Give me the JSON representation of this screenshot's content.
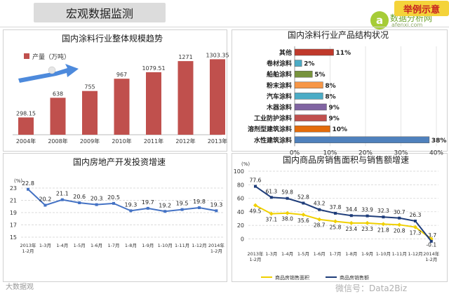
{
  "page": {
    "title": "宏观数据监测",
    "brand_name": "数据分析网",
    "brand_url": "afenxi.com",
    "badge": "举例示意",
    "footer_watermark": "大数据观",
    "wechat_watermark": "微信号：Data2Biz"
  },
  "chart_data": [
    {
      "type": "bar",
      "title": "国内涂料行业整体规模趋势",
      "legend": "产量（万吨）",
      "categories": [
        "2004年",
        "2008年",
        "2009年",
        "2010年",
        "2011年",
        "2012年",
        "2013年"
      ],
      "values": [
        298.15,
        638,
        755,
        967,
        1079.51,
        1271,
        1303.35
      ],
      "value_labels": [
        "298.15",
        "638",
        "755",
        "967",
        "1079.51",
        "1271",
        "1303.35"
      ],
      "color": "#c0504d",
      "ylim": [
        0,
        1400
      ]
    },
    {
      "type": "bar",
      "orientation": "horizontal",
      "title": "国内涂料行业产品结构状况",
      "categories": [
        "其他",
        "卷材涂料",
        "船舶涂料",
        "粉末涂料",
        "汽车涂料",
        "木器涂料",
        "工业防护涂料",
        "溶剂型建筑涂料",
        "水性建筑涂料"
      ],
      "values": [
        11,
        2,
        5,
        8,
        8,
        9,
        9,
        10,
        38
      ],
      "value_labels": [
        "11%",
        "2%",
        "5%",
        "8%",
        "8%",
        "9%",
        "9%",
        "10%",
        "38%"
      ],
      "colors": [
        "#c0392b",
        "#4bacc6",
        "#77933c",
        "#f79646",
        "#4bacc6",
        "#8064a2",
        "#c0504d",
        "#e46c0a",
        "#4f81bd"
      ],
      "xticks": [
        "0%",
        "10%",
        "20%",
        "30%",
        "40%"
      ],
      "xlim": [
        0,
        40
      ]
    },
    {
      "type": "line",
      "title": "国内房地产开发投资增速",
      "yunit": "(%)",
      "categories": [
        "2013年\n1-2月",
        "1-3月",
        "1-4月",
        "1-5月",
        "1-6月",
        "1-7月",
        "1-8月",
        "1-9月",
        "1-10月",
        "1-11月",
        "1-12月",
        "2014年\n1-2月"
      ],
      "values": [
        22.8,
        20.2,
        21.1,
        20.6,
        20.3,
        20.5,
        19.3,
        19.7,
        19.2,
        19.5,
        19.8,
        19.3
      ],
      "value_labels": [
        "22.8",
        "20.2",
        "21.1",
        "20.6",
        "20.3",
        "20.5",
        "19.3",
        "19.7",
        "19.2",
        "19.5",
        "19.8",
        "19.3"
      ],
      "yticks": [
        "15",
        "17",
        "19",
        "21",
        "23"
      ],
      "ylim": [
        15,
        23
      ],
      "color": "#4472c4"
    },
    {
      "type": "line",
      "title": "国内商品房销售面积与销售额增速",
      "yunit": "(%)",
      "categories": [
        "2013年\n1-2月",
        "1-3月",
        "1-4月",
        "1-5月",
        "1-6月",
        "1-7月",
        "1-8月",
        "1-9月",
        "1-10月",
        "1-11月",
        "1-12月",
        "2014年\n1-2月"
      ],
      "series": [
        {
          "name": "商品房销售面积",
          "values": [
            49.5,
            37.1,
            38.0,
            35.6,
            28.7,
            25.8,
            23.4,
            23.3,
            21.8,
            20.8,
            17.3,
            -0.1
          ],
          "value_labels": [
            "49.5",
            "37.1",
            "38.0",
            "35.6",
            "28.7",
            "25.8",
            "23.4",
            "23.3",
            "21.8",
            "20.8",
            "17.3",
            "-0.1"
          ],
          "color": "#f0d000"
        },
        {
          "name": "商品房销售额",
          "values": [
            77.6,
            61.3,
            59.8,
            52.8,
            43.2,
            37.8,
            34.4,
            33.9,
            32.3,
            30.7,
            26.3,
            -3.7
          ],
          "value_labels": [
            "77.6",
            "61.3",
            "59.8",
            "52.8",
            "43.2",
            "37.8",
            "34.4",
            "33.9",
            "32.3",
            "30.7",
            "26.3",
            "-3.7"
          ],
          "color": "#1f3d7a"
        }
      ],
      "yticks": [
        "0",
        "20",
        "40",
        "60",
        "80",
        "100"
      ],
      "ylim": [
        -10,
        100
      ]
    }
  ]
}
